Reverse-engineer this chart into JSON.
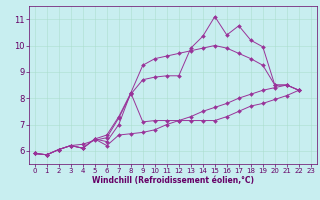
{
  "xlabel": "Windchill (Refroidissement éolien,°C)",
  "xlim": [
    -0.5,
    23.5
  ],
  "ylim": [
    5.5,
    11.5
  ],
  "xticks": [
    0,
    1,
    2,
    3,
    4,
    5,
    6,
    7,
    8,
    9,
    10,
    11,
    12,
    13,
    14,
    15,
    16,
    17,
    18,
    19,
    20,
    21,
    22,
    23
  ],
  "yticks": [
    6,
    7,
    8,
    9,
    10,
    11
  ],
  "bg_color": "#c8eef0",
  "line_color": "#993399",
  "grid_color": "#aaddcc",
  "lines": [
    [
      0,
      5.9,
      1,
      5.85,
      2,
      6.05,
      3,
      6.2,
      4,
      6.25,
      5,
      6.4,
      6,
      6.5,
      7,
      7.25,
      8,
      8.15,
      9,
      8.7,
      10,
      8.8,
      11,
      8.85,
      12,
      8.85,
      13,
      9.9,
      14,
      10.35,
      15,
      11.1,
      16,
      10.4,
      17,
      10.75,
      18,
      10.2,
      19,
      9.95,
      20,
      8.5,
      21,
      8.5,
      22,
      8.3
    ],
    [
      0,
      5.9,
      1,
      5.85,
      2,
      6.05,
      3,
      6.2,
      4,
      6.1,
      5,
      6.45,
      6,
      6.6,
      7,
      7.3,
      8,
      8.2,
      9,
      7.1,
      10,
      7.15,
      11,
      7.15,
      12,
      7.15,
      13,
      7.15,
      14,
      7.15,
      15,
      7.15,
      16,
      7.3,
      17,
      7.5,
      18,
      7.7,
      19,
      7.8,
      20,
      7.95,
      21,
      8.1,
      22,
      8.3
    ],
    [
      0,
      5.9,
      1,
      5.85,
      2,
      6.05,
      3,
      6.2,
      4,
      6.1,
      5,
      6.45,
      6,
      6.2,
      7,
      6.6,
      8,
      6.65,
      9,
      6.7,
      10,
      6.8,
      11,
      7.0,
      12,
      7.15,
      13,
      7.3,
      14,
      7.5,
      15,
      7.65,
      16,
      7.8,
      17,
      8.0,
      18,
      8.15,
      19,
      8.3,
      20,
      8.4,
      21,
      8.5,
      22,
      8.3
    ],
    [
      0,
      5.9,
      1,
      5.85,
      2,
      6.05,
      3,
      6.2,
      4,
      6.1,
      5,
      6.45,
      6,
      6.35,
      7,
      7.0,
      8,
      8.2,
      9,
      9.25,
      10,
      9.5,
      11,
      9.6,
      12,
      9.7,
      13,
      9.8,
      14,
      9.9,
      15,
      10.0,
      16,
      9.9,
      17,
      9.7,
      18,
      9.5,
      19,
      9.25,
      20,
      8.5,
      21,
      8.5,
      22,
      8.3
    ]
  ],
  "tick_color": "#660066",
  "spine_color": "#660066",
  "xlabel_fontsize": 5.5,
  "tick_fontsize_x": 5.0,
  "tick_fontsize_y": 6.0,
  "linewidth": 0.7,
  "markersize": 2.0
}
